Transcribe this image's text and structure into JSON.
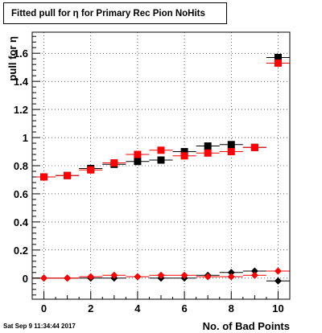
{
  "title": "Fitted pull for  η for Primary Rec Pion NoHits",
  "timestamp": "Sat Sep  9 11:34:44 2017",
  "chart_data": {
    "type": "scatter",
    "title": "Fitted pull for  η for Primary Rec Pion NoHits",
    "xlabel": "No. of Bad Points",
    "ylabel": "pull for  η",
    "xlim": [
      -0.5,
      10.5
    ],
    "ylim": [
      -0.15,
      1.75
    ],
    "xticks": [
      0,
      2,
      4,
      6,
      8,
      10
    ],
    "yticks": [
      0,
      0.2,
      0.4,
      0.6,
      0.8,
      1,
      1.2,
      1.4,
      1.6
    ],
    "ytick_labels": [
      "0",
      "0.2",
      "0.4",
      "0.6",
      "0.8",
      "1",
      "1.2",
      "1.4",
      "1.6"
    ],
    "grid": true,
    "series": [
      {
        "marker": "square",
        "color": "#000000",
        "x": [
          0,
          1,
          2,
          3,
          4,
          5,
          6,
          7,
          8,
          9,
          10
        ],
        "y": [
          0.72,
          0.73,
          0.78,
          0.81,
          0.83,
          0.84,
          0.9,
          0.94,
          0.95,
          0.93,
          1.57
        ]
      },
      {
        "marker": "square",
        "color": "#ff0000",
        "x": [
          0,
          1,
          2,
          3,
          4,
          5,
          6,
          7,
          8,
          9,
          10
        ],
        "y": [
          0.72,
          0.73,
          0.77,
          0.82,
          0.88,
          0.91,
          0.87,
          0.89,
          0.9,
          0.93,
          1.53
        ]
      },
      {
        "marker": "diamond",
        "color": "#000000",
        "x": [
          0,
          1,
          2,
          3,
          4,
          5,
          6,
          7,
          8,
          9,
          10
        ],
        "y": [
          0.0,
          0.0,
          0.0,
          0.0,
          0.01,
          0.0,
          0.0,
          0.02,
          0.04,
          0.05,
          -0.02
        ]
      },
      {
        "marker": "diamond",
        "color": "#ff0000",
        "x": [
          0,
          1,
          2,
          3,
          4,
          5,
          6,
          7,
          8,
          9,
          10
        ],
        "y": [
          0.0,
          0.0,
          0.01,
          0.02,
          0.01,
          0.02,
          0.02,
          0.01,
          0.01,
          0.02,
          0.05
        ]
      }
    ]
  }
}
